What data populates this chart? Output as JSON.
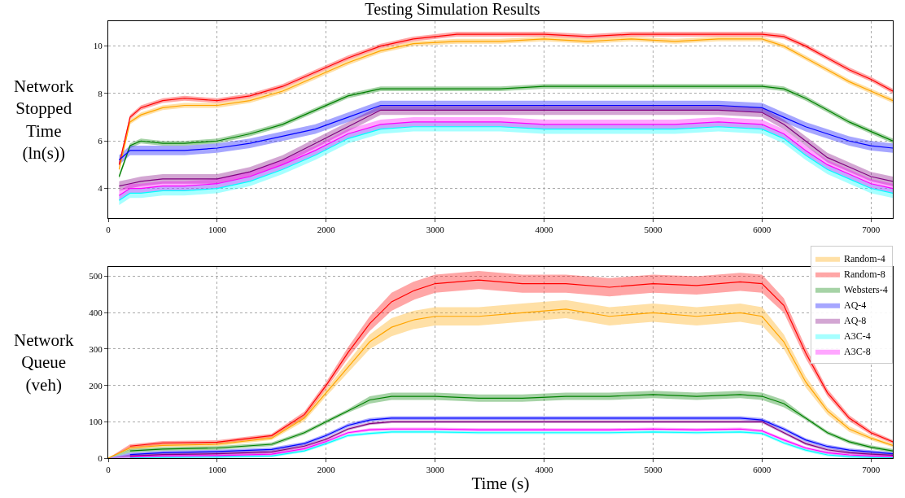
{
  "chart_data": [
    {
      "type": "line",
      "title": "Testing Simulation Results",
      "ylabel": "Network Stopped Time (ln(s))",
      "xlim": [
        0,
        7200
      ],
      "xticks": [
        0,
        1000,
        2000,
        3000,
        4000,
        5000,
        6000,
        7000
      ],
      "ylim": [
        2.75,
        11.05
      ],
      "yticks": [
        4,
        6,
        8,
        10
      ],
      "grid": true,
      "marker": "none",
      "line_style": "solid",
      "x": [
        100,
        200,
        300,
        500,
        700,
        1000,
        1300,
        1600,
        1900,
        2200,
        2500,
        2800,
        3200,
        3600,
        4000,
        4400,
        4800,
        5200,
        5600,
        6000,
        6200,
        6400,
        6600,
        6800,
        7000,
        7200
      ],
      "series": [
        {
          "color": "#ffa500",
          "values": [
            4.8,
            6.8,
            7.1,
            7.4,
            7.5,
            7.5,
            7.7,
            8.1,
            8.7,
            9.3,
            9.8,
            10.1,
            10.2,
            10.2,
            10.3,
            10.2,
            10.3,
            10.2,
            10.3,
            10.3,
            10.0,
            9.5,
            9.0,
            8.5,
            8.1,
            7.7
          ],
          "lower": [
            4.7,
            6.7,
            7.0,
            7.3,
            7.4,
            7.4,
            7.6,
            8.0,
            8.6,
            9.2,
            9.7,
            10.0,
            10.1,
            10.1,
            10.2,
            10.1,
            10.2,
            10.1,
            10.2,
            10.2,
            9.9,
            9.4,
            8.9,
            8.4,
            8.0,
            7.6
          ],
          "upper": [
            4.9,
            6.9,
            7.2,
            7.5,
            7.6,
            7.6,
            7.8,
            8.2,
            8.8,
            9.4,
            9.9,
            10.2,
            10.3,
            10.3,
            10.4,
            10.3,
            10.4,
            10.3,
            10.4,
            10.4,
            10.1,
            9.6,
            9.1,
            8.6,
            8.2,
            7.8
          ]
        },
        {
          "color": "#ff0000",
          "values": [
            5.0,
            7.0,
            7.4,
            7.7,
            7.8,
            7.7,
            7.9,
            8.3,
            8.9,
            9.5,
            10.0,
            10.3,
            10.5,
            10.5,
            10.5,
            10.4,
            10.5,
            10.5,
            10.5,
            10.5,
            10.4,
            10.0,
            9.5,
            9.0,
            8.6,
            8.1
          ],
          "lower": [
            4.9,
            6.9,
            7.3,
            7.6,
            7.7,
            7.6,
            7.8,
            8.2,
            8.8,
            9.4,
            9.9,
            10.2,
            10.4,
            10.4,
            10.4,
            10.3,
            10.4,
            10.4,
            10.4,
            10.4,
            10.3,
            9.9,
            9.4,
            8.9,
            8.5,
            8.0
          ],
          "upper": [
            5.1,
            7.1,
            7.5,
            7.8,
            7.9,
            7.8,
            8.0,
            8.4,
            9.0,
            9.6,
            10.1,
            10.4,
            10.6,
            10.6,
            10.6,
            10.5,
            10.6,
            10.6,
            10.6,
            10.6,
            10.5,
            10.1,
            9.6,
            9.1,
            8.7,
            8.2
          ]
        },
        {
          "color": "#008000",
          "values": [
            4.5,
            5.8,
            6.0,
            5.9,
            5.9,
            6.0,
            6.3,
            6.7,
            7.3,
            7.9,
            8.2,
            8.2,
            8.2,
            8.2,
            8.3,
            8.3,
            8.3,
            8.3,
            8.3,
            8.3,
            8.2,
            7.8,
            7.3,
            6.8,
            6.4,
            6.0
          ],
          "lower": [
            4.4,
            5.7,
            5.9,
            5.8,
            5.8,
            5.9,
            6.2,
            6.6,
            7.2,
            7.8,
            8.1,
            8.1,
            8.1,
            8.1,
            8.2,
            8.2,
            8.2,
            8.2,
            8.2,
            8.2,
            8.1,
            7.7,
            7.2,
            6.7,
            6.3,
            5.9
          ],
          "upper": [
            4.6,
            5.9,
            6.1,
            6.0,
            6.0,
            6.1,
            6.4,
            6.8,
            7.4,
            8.0,
            8.3,
            8.3,
            8.3,
            8.3,
            8.4,
            8.4,
            8.4,
            8.4,
            8.4,
            8.4,
            8.3,
            7.9,
            7.4,
            6.9,
            6.5,
            6.1
          ]
        },
        {
          "color": "#0000ff",
          "values": [
            5.2,
            5.6,
            5.6,
            5.6,
            5.6,
            5.7,
            5.9,
            6.2,
            6.5,
            7.0,
            7.5,
            7.5,
            7.5,
            7.5,
            7.5,
            7.5,
            7.5,
            7.5,
            7.5,
            7.4,
            7.0,
            6.6,
            6.3,
            6.0,
            5.8,
            5.7
          ],
          "lower": [
            5.0,
            5.4,
            5.4,
            5.4,
            5.4,
            5.5,
            5.7,
            6.0,
            6.3,
            6.8,
            7.3,
            7.3,
            7.3,
            7.3,
            7.3,
            7.3,
            7.3,
            7.3,
            7.3,
            7.2,
            6.8,
            6.4,
            6.1,
            5.8,
            5.6,
            5.5
          ],
          "upper": [
            5.4,
            5.8,
            5.8,
            5.8,
            5.8,
            5.9,
            6.1,
            6.4,
            6.7,
            7.2,
            7.7,
            7.7,
            7.7,
            7.7,
            7.7,
            7.7,
            7.7,
            7.7,
            7.7,
            7.6,
            7.2,
            6.8,
            6.5,
            6.2,
            6.0,
            5.9
          ]
        },
        {
          "color": "#800080",
          "values": [
            4.1,
            4.2,
            4.3,
            4.4,
            4.4,
            4.4,
            4.7,
            5.2,
            5.9,
            6.6,
            7.3,
            7.3,
            7.3,
            7.3,
            7.3,
            7.3,
            7.3,
            7.3,
            7.3,
            7.2,
            6.7,
            6.0,
            5.3,
            4.9,
            4.5,
            4.3
          ],
          "lower": [
            3.9,
            4.0,
            4.1,
            4.2,
            4.2,
            4.2,
            4.5,
            5.0,
            5.7,
            6.4,
            7.1,
            7.1,
            7.1,
            7.1,
            7.1,
            7.1,
            7.1,
            7.1,
            7.1,
            7.0,
            6.5,
            5.8,
            5.1,
            4.7,
            4.3,
            4.1
          ],
          "upper": [
            4.3,
            4.4,
            4.5,
            4.6,
            4.6,
            4.6,
            4.9,
            5.4,
            6.1,
            6.8,
            7.5,
            7.5,
            7.5,
            7.5,
            7.5,
            7.5,
            7.5,
            7.5,
            7.5,
            7.4,
            6.9,
            6.2,
            5.5,
            5.1,
            4.7,
            4.5
          ]
        },
        {
          "color": "#00ffff",
          "values": [
            3.5,
            3.8,
            3.8,
            3.9,
            3.9,
            4.0,
            4.3,
            4.8,
            5.4,
            6.1,
            6.5,
            6.6,
            6.6,
            6.6,
            6.5,
            6.5,
            6.5,
            6.5,
            6.6,
            6.5,
            6.1,
            5.4,
            4.8,
            4.4,
            4.0,
            3.8
          ],
          "lower": [
            3.3,
            3.6,
            3.6,
            3.7,
            3.7,
            3.8,
            4.1,
            4.6,
            5.2,
            5.9,
            6.3,
            6.4,
            6.4,
            6.4,
            6.3,
            6.3,
            6.3,
            6.3,
            6.4,
            6.3,
            5.9,
            5.2,
            4.6,
            4.2,
            3.8,
            3.6
          ],
          "upper": [
            3.7,
            4.0,
            4.0,
            4.1,
            4.1,
            4.2,
            4.5,
            5.0,
            5.6,
            6.3,
            6.7,
            6.8,
            6.8,
            6.8,
            6.7,
            6.7,
            6.7,
            6.7,
            6.8,
            6.7,
            6.3,
            5.6,
            5.0,
            4.6,
            4.2,
            4.0
          ]
        },
        {
          "color": "#ff00ff",
          "values": [
            3.7,
            4.0,
            4.0,
            4.1,
            4.1,
            4.2,
            4.5,
            5.0,
            5.6,
            6.3,
            6.7,
            6.8,
            6.8,
            6.8,
            6.7,
            6.7,
            6.7,
            6.7,
            6.8,
            6.7,
            6.3,
            5.6,
            5.0,
            4.6,
            4.2,
            4.0
          ],
          "lower": [
            3.5,
            3.8,
            3.8,
            3.9,
            3.9,
            4.0,
            4.3,
            4.8,
            5.4,
            6.1,
            6.5,
            6.6,
            6.6,
            6.6,
            6.5,
            6.5,
            6.5,
            6.5,
            6.6,
            6.5,
            6.1,
            5.4,
            4.8,
            4.4,
            4.0,
            3.8
          ],
          "upper": [
            3.9,
            4.2,
            4.2,
            4.3,
            4.3,
            4.4,
            4.7,
            5.2,
            5.8,
            6.5,
            6.9,
            7.0,
            7.0,
            7.0,
            6.9,
            6.9,
            6.9,
            6.9,
            7.0,
            6.9,
            6.5,
            5.8,
            5.2,
            4.8,
            4.4,
            4.2
          ]
        }
      ]
    },
    {
      "type": "line",
      "xlabel": "Time (s)",
      "ylabel": "Network Queue (veh)",
      "xlim": [
        0,
        7200
      ],
      "xticks": [
        0,
        1000,
        2000,
        3000,
        4000,
        5000,
        6000,
        7000
      ],
      "ylim": [
        0,
        526
      ],
      "yticks": [
        0,
        100,
        200,
        300,
        400,
        500
      ],
      "grid": true,
      "legend": "top right",
      "marker": "none",
      "line_style": "solid",
      "x": [
        0,
        200,
        500,
        1000,
        1500,
        1800,
        2000,
        2200,
        2400,
        2600,
        2800,
        3000,
        3400,
        3800,
        4200,
        4600,
        5000,
        5400,
        5800,
        6000,
        6200,
        6400,
        6600,
        6800,
        7000,
        7200
      ],
      "series": [
        {
          "name": "Random-4",
          "color": "#ffa500",
          "values": [
            0,
            28,
            35,
            38,
            55,
            110,
            180,
            250,
            320,
            360,
            380,
            390,
            390,
            400,
            410,
            390,
            400,
            390,
            400,
            390,
            320,
            210,
            130,
            80,
            55,
            35
          ],
          "lower": [
            0,
            23,
            30,
            33,
            50,
            102,
            170,
            235,
            300,
            335,
            355,
            365,
            365,
            375,
            385,
            365,
            375,
            365,
            375,
            365,
            300,
            195,
            120,
            72,
            49,
            30
          ],
          "upper": [
            0,
            33,
            40,
            43,
            60,
            118,
            190,
            265,
            340,
            385,
            405,
            415,
            415,
            425,
            435,
            415,
            425,
            415,
            425,
            415,
            340,
            225,
            140,
            88,
            61,
            40
          ]
        },
        {
          "name": "Random-8",
          "color": "#ff0000",
          "values": [
            null,
            33,
            42,
            44,
            62,
            120,
            200,
            290,
            370,
            430,
            460,
            480,
            490,
            480,
            480,
            470,
            480,
            475,
            485,
            480,
            420,
            290,
            180,
            110,
            70,
            45
          ],
          "lower": [
            0,
            28,
            37,
            39,
            57,
            112,
            190,
            275,
            350,
            405,
            435,
            455,
            465,
            455,
            455,
            445,
            455,
            450,
            460,
            455,
            400,
            275,
            170,
            102,
            64,
            40
          ],
          "upper": [
            0,
            38,
            47,
            49,
            67,
            128,
            210,
            305,
            390,
            455,
            485,
            505,
            515,
            505,
            505,
            495,
            505,
            500,
            510,
            505,
            440,
            305,
            190,
            118,
            76,
            50
          ]
        },
        {
          "name": "Websters-4",
          "color": "#008000",
          "values": [
            null,
            20,
            25,
            28,
            38,
            70,
            100,
            130,
            160,
            170,
            170,
            170,
            165,
            165,
            170,
            170,
            175,
            170,
            175,
            170,
            150,
            110,
            70,
            45,
            30,
            20
          ],
          "lower": [
            0,
            15,
            20,
            23,
            33,
            65,
            95,
            125,
            150,
            160,
            160,
            160,
            155,
            155,
            160,
            160,
            165,
            160,
            165,
            160,
            140,
            105,
            65,
            40,
            25,
            15
          ],
          "upper": [
            0,
            25,
            30,
            33,
            43,
            75,
            105,
            135,
            170,
            180,
            180,
            180,
            175,
            175,
            180,
            180,
            185,
            180,
            185,
            180,
            160,
            115,
            75,
            50,
            35,
            25
          ]
        },
        {
          "name": "AQ-4",
          "color": "#0000ff",
          "values": [
            null,
            10,
            15,
            18,
            24,
            40,
            62,
            90,
            105,
            110,
            110,
            110,
            110,
            110,
            110,
            110,
            110,
            110,
            110,
            105,
            80,
            50,
            32,
            22,
            17,
            12
          ],
          "lower": [
            0,
            5,
            10,
            13,
            19,
            35,
            57,
            85,
            100,
            105,
            105,
            105,
            105,
            105,
            105,
            105,
            105,
            105,
            105,
            100,
            75,
            45,
            27,
            17,
            12,
            7
          ],
          "upper": [
            0,
            15,
            20,
            23,
            29,
            45,
            67,
            95,
            110,
            115,
            115,
            115,
            115,
            115,
            115,
            115,
            115,
            115,
            115,
            110,
            85,
            55,
            37,
            27,
            22,
            17
          ]
        },
        {
          "name": "AQ-8",
          "color": "#800080",
          "values": [
            null,
            6,
            10,
            12,
            17,
            33,
            52,
            80,
            95,
            100,
            100,
            100,
            100,
            100,
            100,
            100,
            100,
            100,
            100,
            100,
            70,
            40,
            23,
            15,
            11,
            8
          ],
          "lower": [
            0,
            2,
            6,
            8,
            13,
            29,
            48,
            76,
            91,
            96,
            96,
            96,
            96,
            96,
            96,
            96,
            96,
            96,
            96,
            96,
            66,
            36,
            19,
            11,
            7,
            4
          ],
          "upper": [
            0,
            10,
            14,
            16,
            21,
            37,
            56,
            84,
            99,
            104,
            104,
            104,
            104,
            104,
            104,
            104,
            104,
            104,
            104,
            104,
            74,
            44,
            27,
            19,
            15,
            12
          ]
        },
        {
          "name": "A3C-4",
          "color": "#00ffff",
          "values": [
            null,
            1,
            2,
            3,
            6,
            20,
            40,
            62,
            68,
            72,
            72,
            72,
            70,
            70,
            70,
            70,
            72,
            70,
            72,
            68,
            42,
            22,
            9,
            4,
            2,
            1
          ],
          "lower": [
            0,
            0,
            0,
            0,
            2,
            16,
            36,
            58,
            64,
            68,
            68,
            68,
            66,
            66,
            66,
            66,
            68,
            66,
            68,
            64,
            38,
            18,
            5,
            0,
            0,
            0
          ],
          "upper": [
            0,
            5,
            6,
            7,
            10,
            24,
            44,
            66,
            72,
            76,
            76,
            76,
            74,
            74,
            74,
            74,
            76,
            74,
            76,
            72,
            46,
            26,
            13,
            8,
            6,
            5
          ]
        },
        {
          "name": "A3C-8",
          "color": "#ff00ff",
          "values": [
            null,
            3,
            6,
            7,
            11,
            26,
            46,
            70,
            78,
            80,
            80,
            80,
            78,
            78,
            78,
            78,
            80,
            78,
            80,
            75,
            50,
            28,
            15,
            9,
            6,
            4
          ],
          "lower": [
            0,
            0,
            2,
            3,
            7,
            22,
            42,
            66,
            74,
            76,
            76,
            76,
            74,
            74,
            74,
            74,
            76,
            74,
            76,
            71,
            46,
            24,
            11,
            5,
            2,
            0
          ],
          "upper": [
            0,
            7,
            10,
            11,
            15,
            30,
            50,
            74,
            82,
            84,
            84,
            84,
            82,
            82,
            82,
            82,
            84,
            82,
            84,
            79,
            54,
            32,
            19,
            13,
            10,
            8
          ]
        }
      ]
    }
  ]
}
